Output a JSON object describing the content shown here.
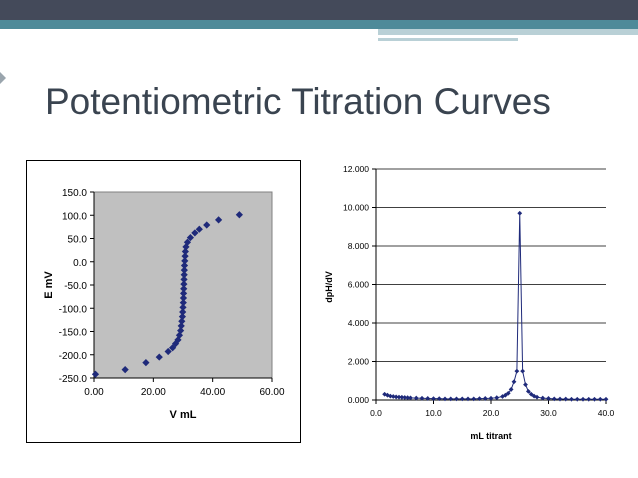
{
  "slide": {
    "title": "Potentiometric Titration Curves",
    "colors": {
      "band_dark": "#444a5a",
      "band_teal": "#4e8a99",
      "band_light": "#b9d0d6",
      "title_text": "#3a4450",
      "marker": "#1f2a7a",
      "plot_area_left": "#c0c0c0"
    }
  },
  "chart_data": [
    {
      "type": "scatter",
      "title": "",
      "xlabel": "V mL",
      "ylabel": "E mV",
      "xlim": [
        0,
        60
      ],
      "ylim": [
        -250,
        150
      ],
      "x_ticks": [
        "0.00",
        "20.00",
        "40.00",
        "60.00"
      ],
      "y_ticks": [
        "150.0",
        "100.0",
        "50.0",
        "0.0",
        "-50.0",
        "-100.0",
        "-150.0",
        "-200.0",
        "-250.0"
      ],
      "grid": false,
      "legend": "none",
      "points": [
        [
          0.5,
          -242
        ],
        [
          10.5,
          -232
        ],
        [
          17.5,
          -217
        ],
        [
          22,
          -205
        ],
        [
          25,
          -193
        ],
        [
          26.5,
          -185
        ],
        [
          27.5,
          -176
        ],
        [
          28.3,
          -168
        ],
        [
          28.8,
          -158
        ],
        [
          29.2,
          -148
        ],
        [
          29.4,
          -138
        ],
        [
          29.6,
          -128
        ],
        [
          29.8,
          -118
        ],
        [
          29.9,
          -108
        ],
        [
          30,
          -98
        ],
        [
          30.1,
          -88
        ],
        [
          30.15,
          -78
        ],
        [
          30.2,
          -68
        ],
        [
          30.25,
          -58
        ],
        [
          30.3,
          -48
        ],
        [
          30.35,
          -38
        ],
        [
          30.4,
          -28
        ],
        [
          30.45,
          -18
        ],
        [
          30.5,
          -8
        ],
        [
          30.6,
          2
        ],
        [
          30.7,
          12
        ],
        [
          30.8,
          22
        ],
        [
          31,
          32
        ],
        [
          31.5,
          42
        ],
        [
          32.5,
          52
        ],
        [
          34,
          62
        ],
        [
          35.5,
          70
        ],
        [
          38,
          79
        ],
        [
          42,
          90
        ],
        [
          49,
          101
        ]
      ]
    },
    {
      "type": "line",
      "title": "",
      "xlabel": "mL titrant",
      "ylabel": "dpH/dV",
      "xlim": [
        0,
        40
      ],
      "ylim": [
        0,
        12
      ],
      "x_ticks": [
        "0.0",
        "10.0",
        "20.0",
        "30.0",
        "40.0"
      ],
      "y_ticks": [
        "0.000",
        "2.000",
        "4.000",
        "6.000",
        "8.000",
        "10.000",
        "12.000"
      ],
      "grid": true,
      "legend": "none",
      "points": [
        [
          1.5,
          0.3
        ],
        [
          2,
          0.25
        ],
        [
          2.5,
          0.2
        ],
        [
          3,
          0.18
        ],
        [
          3.5,
          0.16
        ],
        [
          4,
          0.15
        ],
        [
          4.5,
          0.14
        ],
        [
          5,
          0.13
        ],
        [
          5.5,
          0.12
        ],
        [
          6,
          0.11
        ],
        [
          7,
          0.1
        ],
        [
          8,
          0.09
        ],
        [
          9,
          0.08
        ],
        [
          10,
          0.07
        ],
        [
          11,
          0.07
        ],
        [
          12,
          0.06
        ],
        [
          13,
          0.06
        ],
        [
          14,
          0.06
        ],
        [
          15,
          0.06
        ],
        [
          16,
          0.06
        ],
        [
          17,
          0.06
        ],
        [
          18,
          0.07
        ],
        [
          19,
          0.08
        ],
        [
          20,
          0.09
        ],
        [
          21,
          0.12
        ],
        [
          22,
          0.18
        ],
        [
          22.5,
          0.25
        ],
        [
          23,
          0.35
        ],
        [
          23.5,
          0.55
        ],
        [
          24,
          0.95
        ],
        [
          24.5,
          1.5
        ],
        [
          25,
          9.7
        ],
        [
          25.5,
          1.5
        ],
        [
          26,
          0.8
        ],
        [
          26.5,
          0.45
        ],
        [
          27,
          0.3
        ],
        [
          27.5,
          0.2
        ],
        [
          28,
          0.15
        ],
        [
          29,
          0.1
        ],
        [
          30,
          0.08
        ],
        [
          31,
          0.06
        ],
        [
          32,
          0.05
        ],
        [
          33,
          0.05
        ],
        [
          34,
          0.04
        ],
        [
          35,
          0.04
        ],
        [
          36,
          0.04
        ],
        [
          37,
          0.04
        ],
        [
          38,
          0.04
        ],
        [
          39,
          0.04
        ],
        [
          40,
          0.04
        ]
      ]
    }
  ]
}
